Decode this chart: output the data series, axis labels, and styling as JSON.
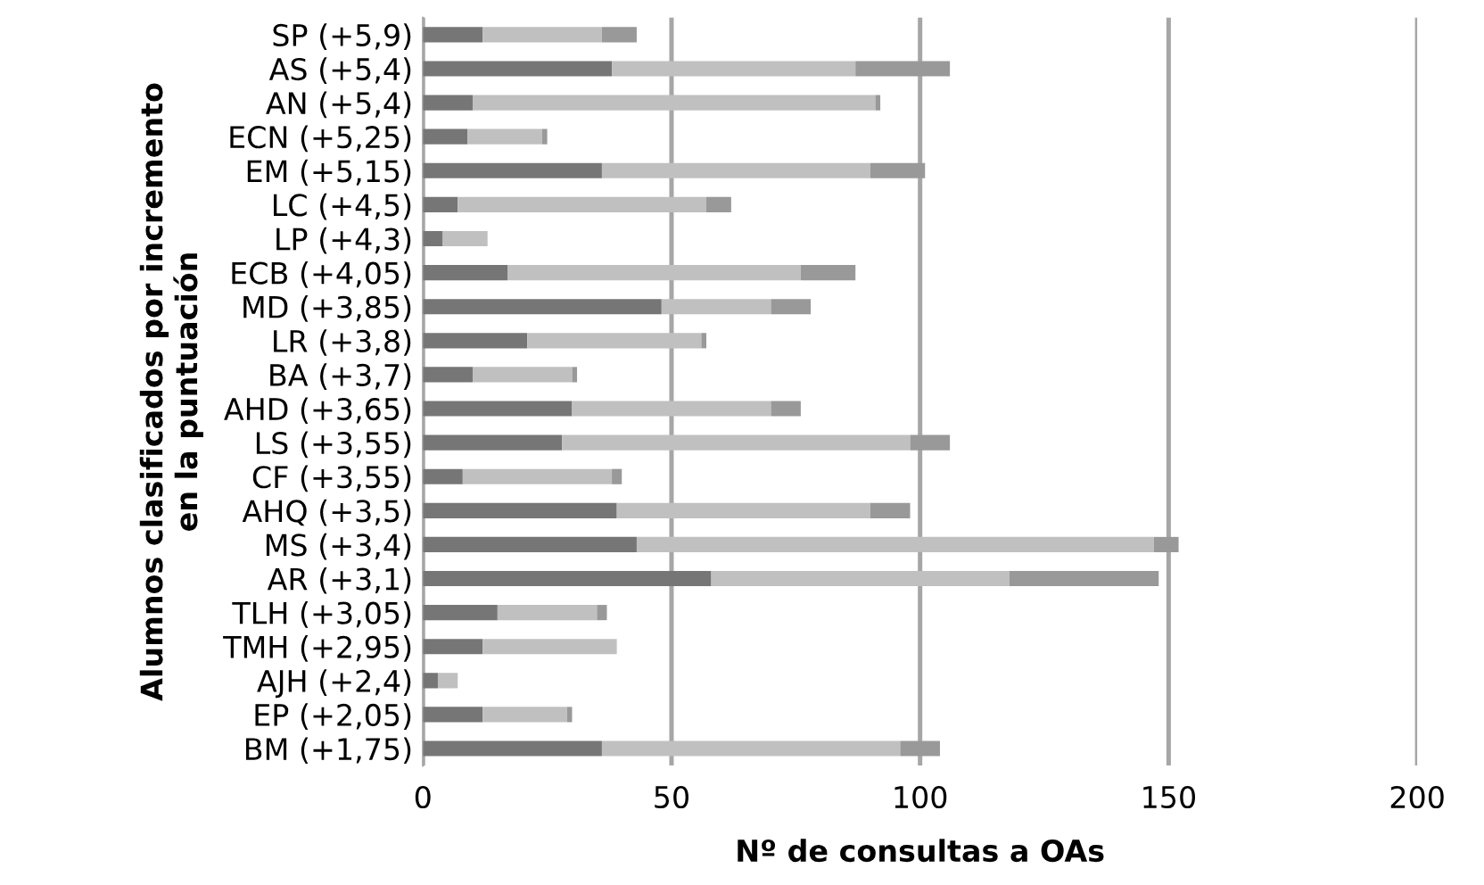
{
  "chart_data": {
    "type": "bar",
    "orientation": "horizontal",
    "stacked": true,
    "xlabel": "Nº de consultas a OAs",
    "ylabel": "Alumnos clasificados por incremento\nen la puntuación",
    "categories": [
      "SP (+5,9)",
      "AS (+5,4)",
      "AN (+5,4)",
      "ECN (+5,25)",
      "EM (+5,15)",
      "LC (+4,5)",
      "LP (+4,3)",
      "ECB (+4,05)",
      "MD (+3,85)",
      "LR (+3,8)",
      "BA (+3,7)",
      "AHD (+3,65)",
      "LS (+3,55)",
      "CF (+3,55)",
      "AHQ (+3,5)",
      "MS (+3,4)",
      "AR (+3,1)",
      "TLH (+3,05)",
      "TMH (+2,95)",
      "AJH (+2,4)",
      "EP (+2,05)",
      "BM (+1,75)"
    ],
    "series": [
      {
        "color": "#767676",
        "values": [
          12,
          38,
          10,
          9,
          36,
          7,
          4,
          17,
          48,
          21,
          10,
          30,
          28,
          8,
          39,
          43,
          58,
          15,
          12,
          3,
          12,
          36
        ]
      },
      {
        "color": "#c0c0c0",
        "values": [
          24,
          49,
          81,
          15,
          54,
          50,
          9,
          59,
          22,
          35,
          20,
          40,
          70,
          30,
          51,
          104,
          60,
          20,
          27,
          4,
          17,
          60
        ]
      },
      {
        "color": "#999999",
        "values": [
          7,
          19,
          1,
          1,
          11,
          5,
          0,
          11,
          8,
          1,
          1,
          6,
          8,
          2,
          8,
          5,
          30,
          2,
          0,
          0,
          1,
          8
        ]
      }
    ],
    "xlim": [
      0,
      200
    ],
    "xticks": [
      0,
      50,
      100,
      150,
      200
    ],
    "grid": "x"
  }
}
